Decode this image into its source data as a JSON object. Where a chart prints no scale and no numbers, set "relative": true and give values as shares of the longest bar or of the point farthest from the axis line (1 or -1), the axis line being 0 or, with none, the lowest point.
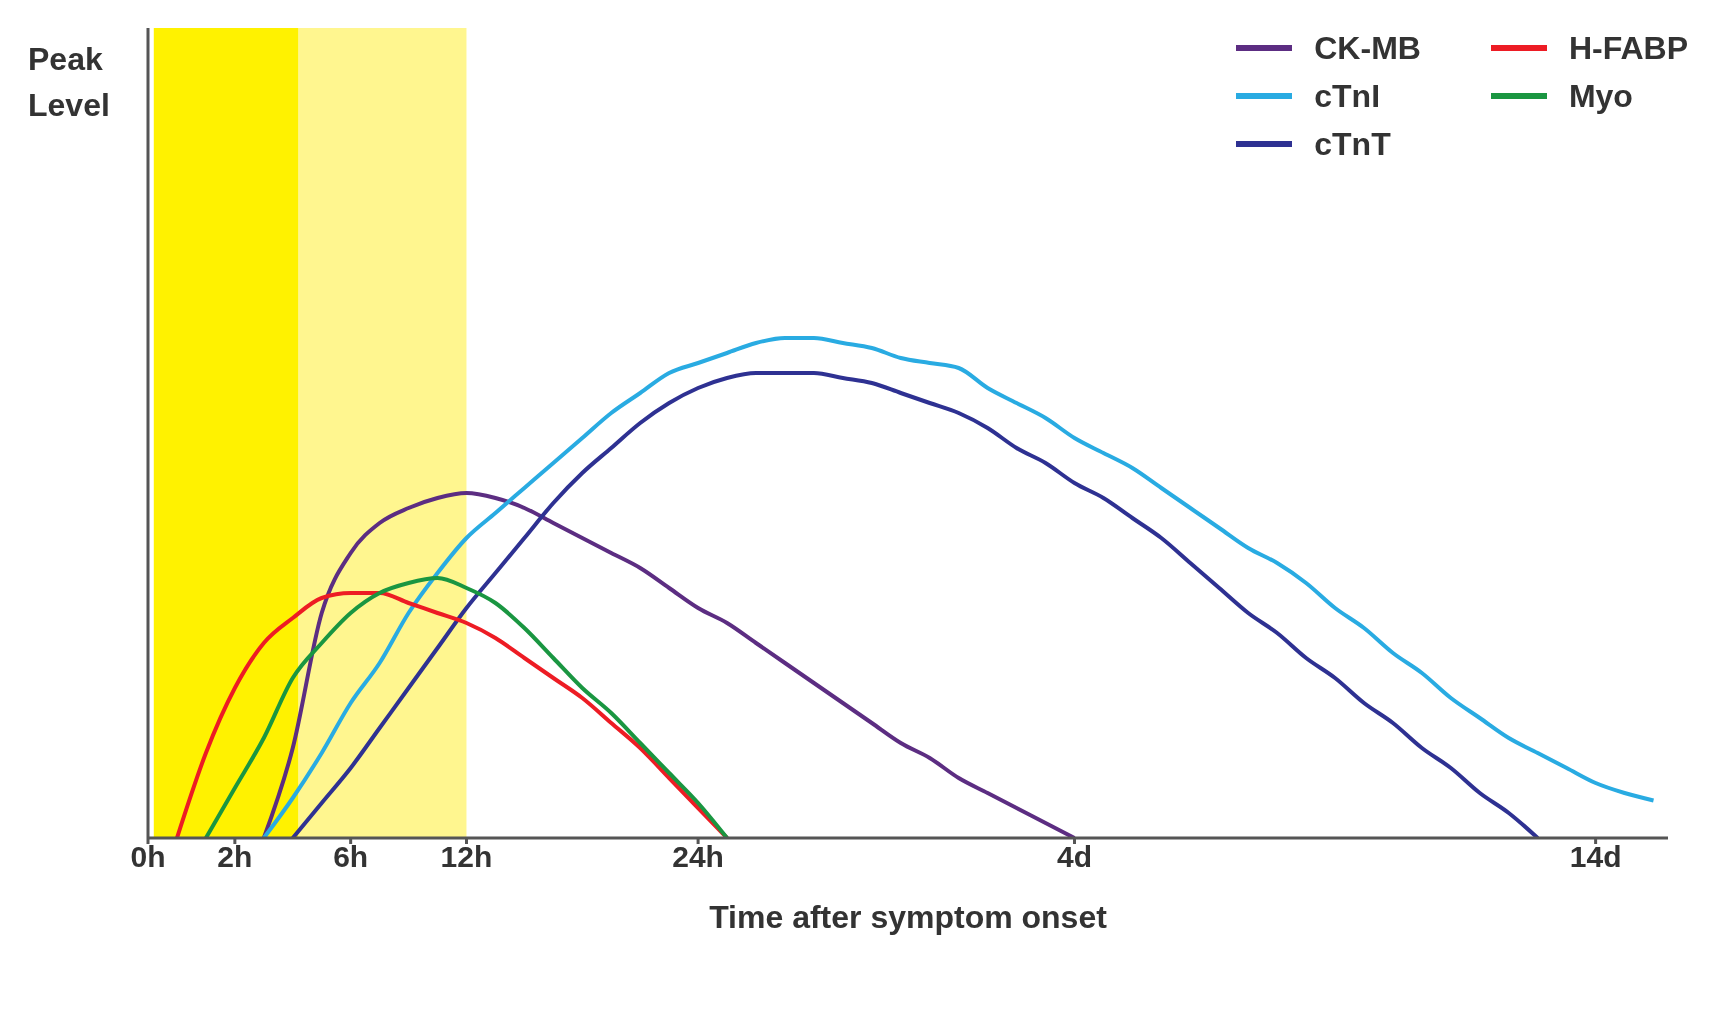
{
  "chart_data": {
    "type": "line",
    "annotations": [
      "Peak Level"
    ],
    "xlabel": "Time after symptom onset",
    "relative": true,
    "legend": "top right",
    "grid": false,
    "marker": "none",
    "line_style": "solid",
    "categories": [
      "0h",
      null,
      null,
      "2h",
      null,
      null,
      null,
      "6h",
      null,
      null,
      null,
      "12h",
      null,
      null,
      null,
      null,
      null,
      null,
      null,
      "24h",
      null,
      null,
      null,
      null,
      null,
      null,
      null,
      null,
      null,
      null,
      null,
      null,
      "4d",
      null,
      null,
      null,
      null,
      null,
      null,
      null,
      null,
      null,
      null,
      null,
      null,
      null,
      null,
      null,
      null,
      null,
      "14d",
      null,
      null
    ],
    "series": [
      {
        "name": "CK-MB",
        "color": "#5c2d82",
        "values": [
          null,
          null,
          null,
          null,
          0,
          0.18,
          0.45,
          0.57,
          0.63,
          0.66,
          0.68,
          0.69,
          0.68,
          0.66,
          0.63,
          0.6,
          0.57,
          0.54,
          0.5,
          0.46,
          0.43,
          0.39,
          0.35,
          0.31,
          0.27,
          0.23,
          0.19,
          0.16,
          0.12,
          0.09,
          0.06,
          0.03,
          0,
          null,
          null,
          null,
          null,
          null,
          null,
          null,
          null,
          null,
          null,
          null,
          null,
          null,
          null,
          null,
          null,
          null,
          null,
          null,
          null
        ]
      },
      {
        "name": "cTnI",
        "color": "#29abe2",
        "values": [
          null,
          null,
          null,
          null,
          0,
          0.08,
          0.17,
          0.27,
          0.35,
          0.45,
          0.53,
          0.6,
          0.65,
          0.7,
          0.75,
          0.8,
          0.85,
          0.89,
          0.93,
          0.95,
          0.97,
          0.99,
          1,
          1,
          0.99,
          0.98,
          0.96,
          0.95,
          0.94,
          0.9,
          0.87,
          0.84,
          0.8,
          0.77,
          0.74,
          0.7,
          0.66,
          0.62,
          0.58,
          0.55,
          0.51,
          0.46,
          0.42,
          0.37,
          0.33,
          0.28,
          0.24,
          0.2,
          0.17,
          0.14,
          0.11,
          0.09,
          0.075
        ]
      },
      {
        "name": "cTnT",
        "color": "#2e3192",
        "values": [
          null,
          null,
          null,
          null,
          null,
          0,
          0.07,
          0.14,
          0.22,
          0.3,
          0.38,
          0.46,
          0.53,
          0.6,
          0.67,
          0.73,
          0.78,
          0.83,
          0.87,
          0.9,
          0.92,
          0.93,
          0.93,
          0.93,
          0.92,
          0.91,
          0.89,
          0.87,
          0.85,
          0.82,
          0.78,
          0.75,
          0.71,
          0.68,
          0.64,
          0.6,
          0.55,
          0.5,
          0.45,
          0.41,
          0.36,
          0.32,
          0.27,
          0.23,
          0.18,
          0.14,
          0.09,
          0.05,
          0,
          null,
          null,
          null,
          null
        ]
      },
      {
        "name": "H-FABP",
        "color": "#ed1c24",
        "values": [
          null,
          0,
          0.17,
          0.3,
          0.39,
          0.44,
          0.48,
          0.49,
          0.49,
          0.47,
          0.45,
          0.43,
          0.4,
          0.36,
          0.32,
          0.28,
          0.23,
          0.18,
          0.12,
          0.06,
          0,
          null,
          null,
          null,
          null,
          null,
          null,
          null,
          null,
          null,
          null,
          null,
          null,
          null,
          null,
          null,
          null,
          null,
          null,
          null,
          null,
          null,
          null,
          null,
          null,
          null,
          null,
          null,
          null,
          null,
          null,
          null,
          null
        ]
      },
      {
        "name": "Myo",
        "color": "#1a9641",
        "values": [
          null,
          null,
          0,
          0.1,
          0.2,
          0.32,
          0.39,
          0.45,
          0.49,
          0.51,
          0.52,
          0.5,
          0.47,
          0.42,
          0.36,
          0.3,
          0.25,
          0.19,
          0.13,
          0.07,
          0,
          null,
          null,
          null,
          null,
          null,
          null,
          null,
          null,
          null,
          null,
          null,
          null,
          null,
          null,
          null,
          null,
          null,
          null,
          null,
          null,
          null,
          null,
          null,
          null,
          null,
          null,
          null,
          null,
          null,
          null,
          null,
          null
        ]
      }
    ]
  }
}
